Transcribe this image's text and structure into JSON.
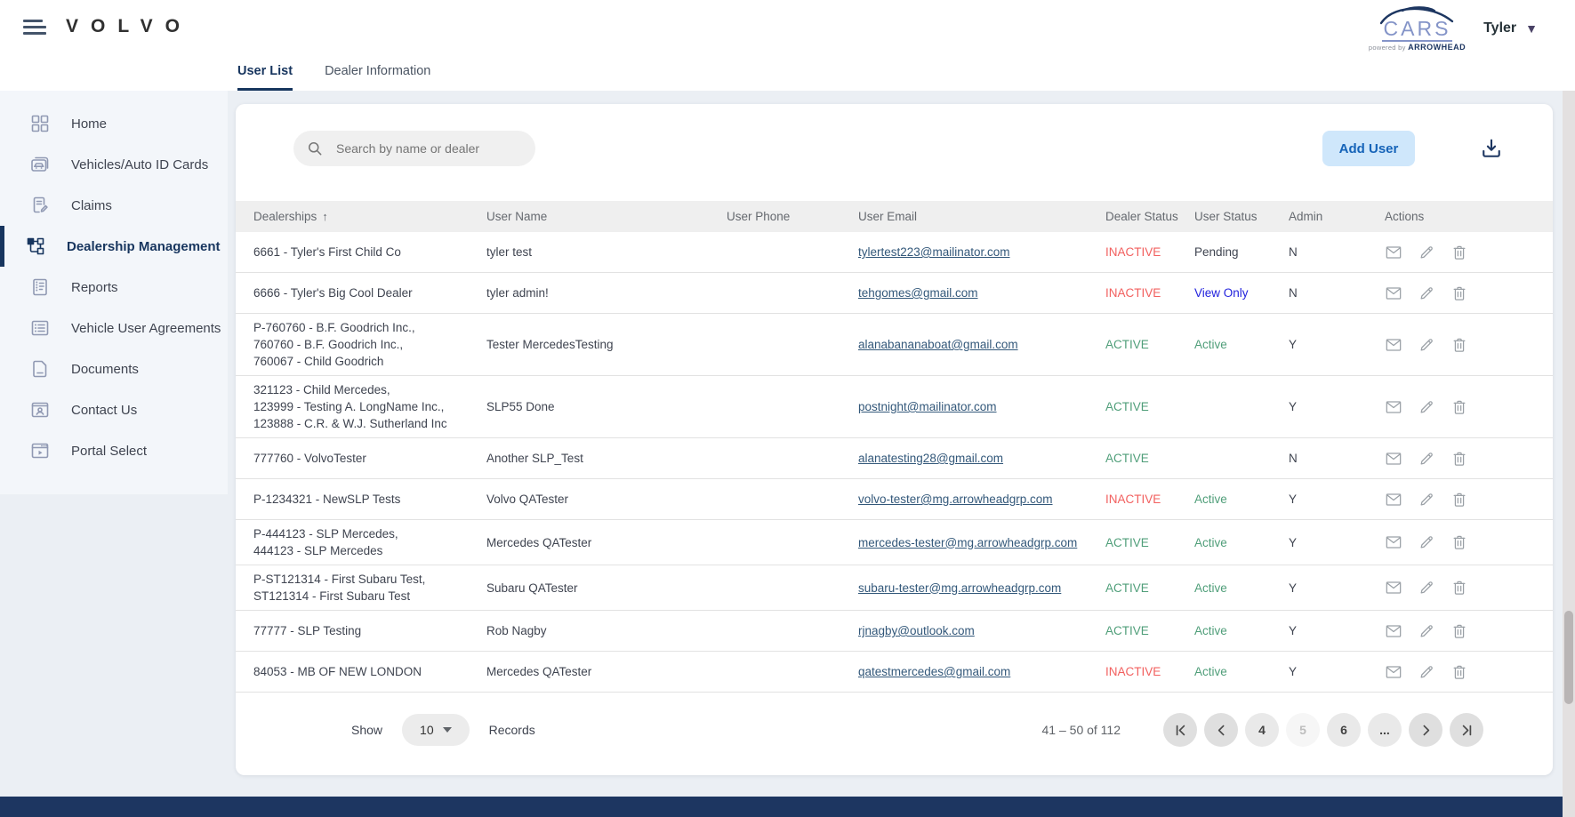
{
  "header": {
    "brand": "VOLVO",
    "logo": {
      "title": "CARS",
      "powered_prefix": "powered by",
      "powered_brand": "ARROWHEAD"
    },
    "user_name": "Tyler",
    "tabs": [
      {
        "label": "User List",
        "active": true
      },
      {
        "label": "Dealer Information",
        "active": false
      }
    ]
  },
  "sidebar": {
    "items": [
      {
        "label": "Home",
        "icon": "dashboard-icon",
        "active": false
      },
      {
        "label": "Vehicles/Auto ID Cards",
        "icon": "vehicles-icon",
        "active": false
      },
      {
        "label": "Claims",
        "icon": "claims-icon",
        "active": false
      },
      {
        "label": "Dealership Management",
        "icon": "org-icon",
        "active": true
      },
      {
        "label": "Reports",
        "icon": "reports-icon",
        "active": false
      },
      {
        "label": "Vehicle User Agreements",
        "icon": "agreements-icon",
        "active": false
      },
      {
        "label": "Documents",
        "icon": "documents-icon",
        "active": false
      },
      {
        "label": "Contact Us",
        "icon": "contact-icon",
        "active": false
      },
      {
        "label": "Portal Select",
        "icon": "portal-icon",
        "active": false
      }
    ]
  },
  "toolbar": {
    "search_placeholder": "Search by name or dealer",
    "add_user_label": "Add User",
    "download_icon": "download-icon"
  },
  "table": {
    "columns": [
      "Dealerships",
      "User Name",
      "User Phone",
      "User Email",
      "Dealer Status",
      "User Status",
      "Admin",
      "Actions"
    ],
    "sort_column": "Dealerships",
    "sort_indicator": "↑",
    "status_colors": {
      "ACTIVE": "#4f9e79",
      "INACTIVE": "#f2605f",
      "Active": "#4f9e79",
      "View Only": "#2222dd",
      "Pending": "#3f4450"
    },
    "action_icons": [
      "email-icon",
      "edit-icon",
      "delete-icon"
    ],
    "rows": [
      {
        "dealerships": [
          "6661 - Tyler's First Child Co"
        ],
        "user_name": "tyler test",
        "user_phone": "",
        "user_email": "tylertest223@mailinator.com",
        "dealer_status": "INACTIVE",
        "user_status": "Pending",
        "admin": "N"
      },
      {
        "dealerships": [
          "6666 - Tyler's Big Cool Dealer"
        ],
        "user_name": "tyler admin!",
        "user_phone": "",
        "user_email": "tehgomes@gmail.com",
        "dealer_status": "INACTIVE",
        "user_status": "View Only",
        "admin": "N"
      },
      {
        "dealerships": [
          "P-760760 - B.F. Goodrich Inc.,",
          "760760 - B.F. Goodrich Inc.,",
          "760067 - Child Goodrich"
        ],
        "user_name": "Tester MercedesTesting",
        "user_phone": "",
        "user_email": "alanabananaboat@gmail.com",
        "dealer_status": "ACTIVE",
        "user_status": "Active",
        "admin": "Y"
      },
      {
        "dealerships": [
          "321123 - Child Mercedes,",
          "123999 - Testing A. LongName Inc.,",
          "123888 - C.R. & W.J. Sutherland Inc"
        ],
        "user_name": "SLP55 Done",
        "user_phone": "",
        "user_email": "postnight@mailinator.com",
        "dealer_status": "ACTIVE",
        "user_status": "",
        "admin": "Y"
      },
      {
        "dealerships": [
          "777760 - VolvoTester"
        ],
        "user_name": "Another SLP_Test",
        "user_phone": "",
        "user_email": "alanatesting28@gmail.com",
        "dealer_status": "ACTIVE",
        "user_status": "",
        "admin": "N"
      },
      {
        "dealerships": [
          "P-1234321 - NewSLP Tests"
        ],
        "user_name": "Volvo QATester",
        "user_phone": "",
        "user_email": "volvo-tester@mg.arrowheadgrp.com",
        "dealer_status": "INACTIVE",
        "user_status": "Active",
        "admin": "Y"
      },
      {
        "dealerships": [
          "P-444123 - SLP Mercedes,",
          "444123 - SLP Mercedes"
        ],
        "user_name": "Mercedes QATester",
        "user_phone": "",
        "user_email": "mercedes-tester@mg.arrowheadgrp.com",
        "dealer_status": "ACTIVE",
        "user_status": "Active",
        "admin": "Y"
      },
      {
        "dealerships": [
          "P-ST121314 - First Subaru Test,",
          "ST121314 - First Subaru Test"
        ],
        "user_name": "Subaru QATester",
        "user_phone": "",
        "user_email": "subaru-tester@mg.arrowheadgrp.com",
        "dealer_status": "ACTIVE",
        "user_status": "Active",
        "admin": "Y"
      },
      {
        "dealerships": [
          "77777 - SLP Testing"
        ],
        "user_name": "Rob Nagby",
        "user_phone": "",
        "user_email": "rjnagby@outlook.com",
        "dealer_status": "ACTIVE",
        "user_status": "Active",
        "admin": "Y"
      },
      {
        "dealerships": [
          "84053 - MB OF NEW LONDON"
        ],
        "user_name": "Mercedes QATester",
        "user_phone": "",
        "user_email": "qatestmercedes@gmail.com",
        "dealer_status": "INACTIVE",
        "user_status": "Active",
        "admin": "Y"
      }
    ]
  },
  "pagination": {
    "show_label": "Show",
    "page_size": "10",
    "records_label": "Records",
    "range_text": "41 – 50 of 112",
    "buttons": [
      {
        "name": "first-page-button",
        "icon": "first-page-icon",
        "style": "nav"
      },
      {
        "name": "prev-page-button",
        "icon": "chevron-left-icon",
        "style": "nav"
      },
      {
        "name": "page-4-button",
        "label": "4",
        "style": "page"
      },
      {
        "name": "page-5-button",
        "label": "5",
        "style": "current"
      },
      {
        "name": "page-6-button",
        "label": "6",
        "style": "page"
      },
      {
        "name": "ellipsis-button",
        "label": "...",
        "style": "page"
      },
      {
        "name": "next-page-button",
        "icon": "chevron-right-icon",
        "style": "nav"
      },
      {
        "name": "last-page-button",
        "icon": "last-page-icon",
        "style": "nav"
      }
    ]
  },
  "colors": {
    "accent_navy": "#1d3661",
    "active_green": "#4f9e79",
    "inactive_red": "#f2605f",
    "view_only_blue": "#2222dd",
    "email_link": "#33587a",
    "add_user_bg": "#cfe7fb",
    "add_user_text": "#1563b8",
    "footer_bar": "#1d3661"
  }
}
